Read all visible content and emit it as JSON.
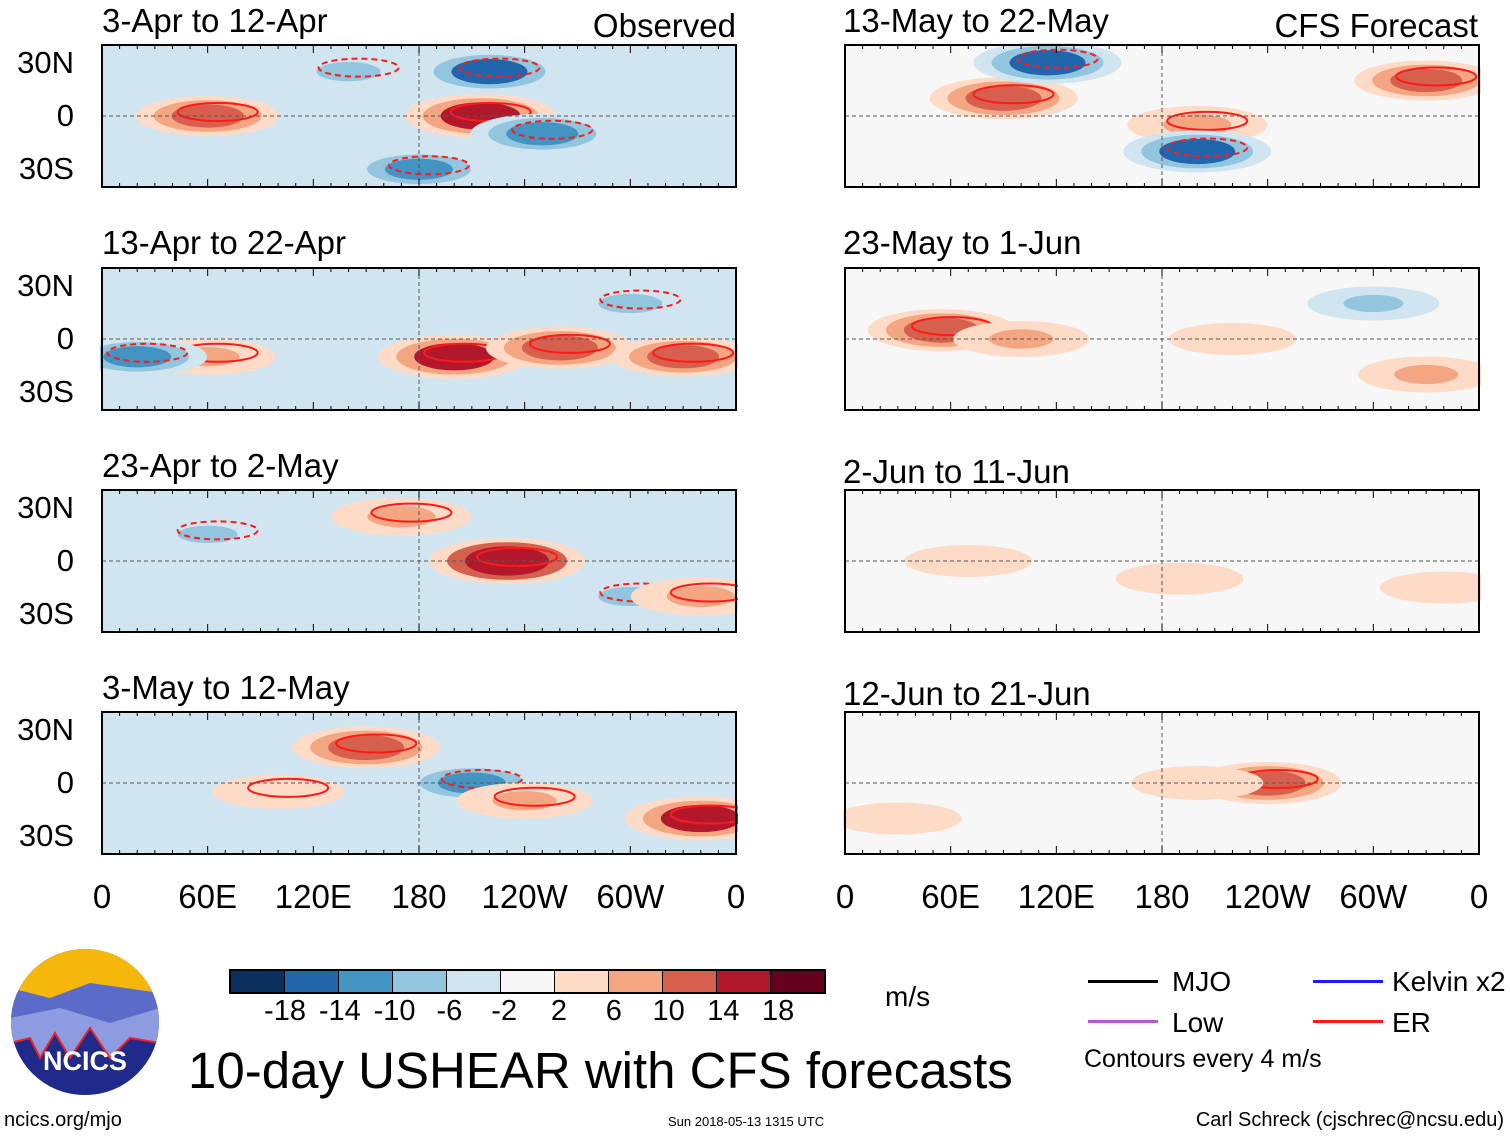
{
  "columns": {
    "left_label": "Observed",
    "right_label": "CFS Forecast"
  },
  "panels_left": [
    {
      "title": "3-Apr to 12-Apr"
    },
    {
      "title": "13-Apr to 22-Apr"
    },
    {
      "title": "23-Apr to 2-May"
    },
    {
      "title": "3-May to 12-May"
    }
  ],
  "panels_right": [
    {
      "title": "13-May to 22-May"
    },
    {
      "title": "23-May to 1-Jun"
    },
    {
      "title": "2-Jun to 11-Jun"
    },
    {
      "title": "12-Jun to 21-Jun"
    }
  ],
  "y_ticks": [
    "30N",
    "0",
    "30S"
  ],
  "x_ticks": [
    "0",
    "60E",
    "120E",
    "180",
    "120W",
    "60W",
    "0"
  ],
  "colorbar": {
    "unit": "m/s",
    "labels": [
      "-18",
      "-14",
      "-10",
      "-6",
      "-2",
      "2",
      "6",
      "10",
      "14",
      "18"
    ],
    "colors": [
      "#0b2f5c",
      "#2166ac",
      "#4393c3",
      "#92c5de",
      "#d1e5f0",
      "#f7f7f7",
      "#fddbc7",
      "#f4a582",
      "#d6604d",
      "#b2182b",
      "#67001f"
    ]
  },
  "legend": {
    "mjo": "MJO",
    "kelvin": "Kelvin x2",
    "low": "Low",
    "er": "ER",
    "contours": "Contours every 4 m/s"
  },
  "title": "10-day USHEAR with CFS forecasts",
  "logo_text": "NCICS",
  "footer": {
    "url": "ncics.org/mjo",
    "timestamp": "Sun 2018-05-13 1315 UTC",
    "author": "Carl Schreck (cjschrec@ncsu.edu)"
  },
  "chart_data": {
    "type": "heatmap",
    "lon_range": [
      0,
      360
    ],
    "lat_range": [
      -40,
      40
    ],
    "anomalies": [
      [
        [
          60,
          0,
          12
        ],
        [
          180,
          -30,
          -10
        ],
        [
          215,
          0,
          16
        ],
        [
          220,
          25,
          -14
        ],
        [
          140,
          25,
          -8
        ],
        [
          250,
          -10,
          -12
        ]
      ],
      [
        [
          60,
          -10,
          8
        ],
        [
          200,
          -10,
          16
        ],
        [
          260,
          -5,
          14
        ],
        [
          20,
          -10,
          -10
        ],
        [
          300,
          20,
          -8
        ],
        [
          330,
          -10,
          12
        ]
      ],
      [
        [
          230,
          0,
          18
        ],
        [
          170,
          25,
          10
        ],
        [
          300,
          -20,
          -8
        ],
        [
          60,
          15,
          -6
        ],
        [
          340,
          -20,
          10
        ]
      ],
      [
        [
          150,
          20,
          14
        ],
        [
          210,
          0,
          -10
        ],
        [
          240,
          -10,
          8
        ],
        [
          340,
          -20,
          16
        ],
        [
          100,
          -5,
          6
        ]
      ],
      [
        [
          90,
          10,
          14
        ],
        [
          115,
          30,
          -14
        ],
        [
          200,
          -5,
          10
        ],
        [
          200,
          -20,
          -14
        ],
        [
          330,
          20,
          12
        ]
      ],
      [
        [
          55,
          5,
          14
        ],
        [
          100,
          0,
          8
        ],
        [
          220,
          0,
          4
        ],
        [
          330,
          -20,
          8
        ],
        [
          300,
          20,
          -6
        ]
      ],
      [
        [
          70,
          0,
          4
        ],
        [
          190,
          -10,
          4
        ],
        [
          340,
          -15,
          4
        ]
      ],
      [
        [
          240,
          0,
          14
        ],
        [
          200,
          0,
          6
        ],
        [
          30,
          -20,
          4
        ]
      ]
    ]
  }
}
